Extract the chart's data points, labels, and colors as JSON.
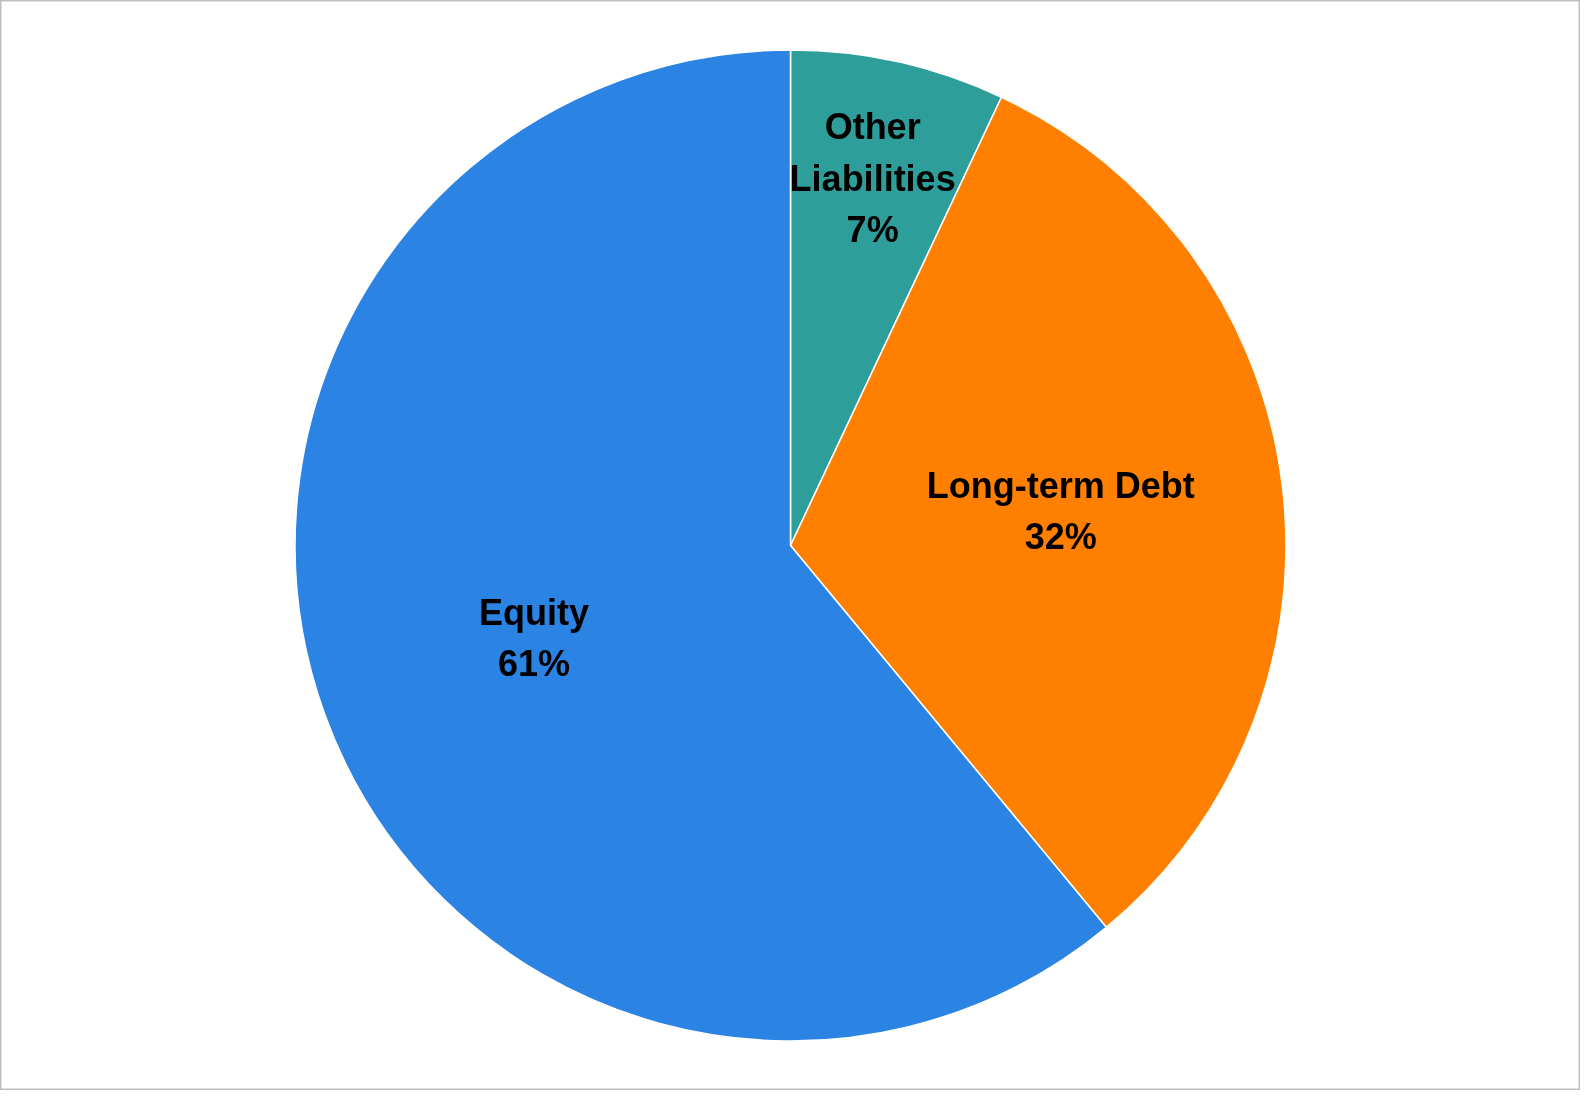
{
  "chart_data": {
    "type": "pie",
    "categories": [
      "Other Liabilities",
      "Long-term Debt",
      "Equity"
    ],
    "values": [
      7,
      32,
      61
    ],
    "value_labels": [
      "7%",
      "32%",
      "61%"
    ],
    "colors": [
      "#2e9e9b",
      "#ff8000",
      "#2b83e3"
    ]
  }
}
